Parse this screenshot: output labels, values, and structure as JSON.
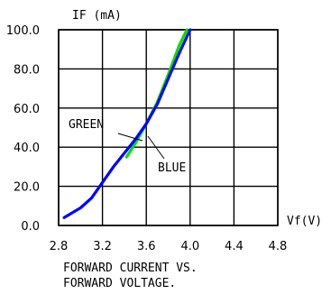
{
  "chart_data": {
    "type": "line",
    "ylabel": "IF (mA)",
    "xlabel": "Vf(V)",
    "caption": [
      "FORWARD CURRENT VS.",
      "FORWARD VOLTAGE."
    ],
    "xlim": [
      2.8,
      4.8
    ],
    "ylim": [
      0,
      100
    ],
    "xticks": [
      "2.8",
      "3.2",
      "3.6",
      "4.0",
      "4.4",
      "4.8"
    ],
    "yticks": [
      "0.0",
      "20.0",
      "40.0",
      "60.0",
      "80.0",
      "100.0"
    ],
    "grid": true,
    "series": [
      {
        "name": "GREEN",
        "color": "#00e000",
        "x": [
          3.42,
          3.5,
          3.6,
          3.7,
          3.8,
          3.9,
          3.97
        ],
        "y": [
          35,
          42,
          52,
          63,
          77,
          92,
          100
        ]
      },
      {
        "name": "BLUE",
        "color": "#0000ff",
        "x": [
          2.85,
          3.0,
          3.1,
          3.2,
          3.3,
          3.4,
          3.5,
          3.6,
          3.7,
          3.8,
          3.9,
          4.0
        ],
        "y": [
          4,
          9,
          14,
          22,
          30,
          37,
          44,
          52,
          62,
          75,
          88,
          100
        ]
      }
    ]
  }
}
